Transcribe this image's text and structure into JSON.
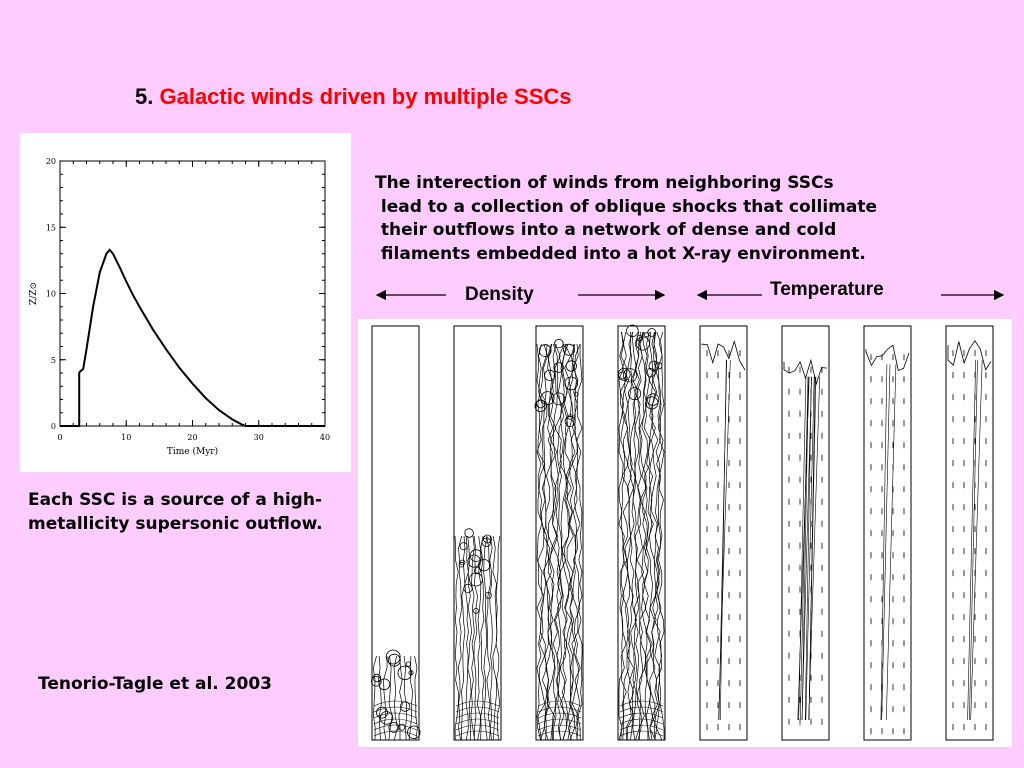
{
  "slide": {
    "number": "5.",
    "title": "Galactic winds driven by multiple SSCs",
    "title_color": "#ff0000",
    "background": "#ffccff"
  },
  "description_lines": [
    "The interection of winds from neighboring SSCs",
    " lead to a collection of oblique shocks that collimate",
    " their outflows into a network of dense and cold",
    " filaments embedded into a hot X-ray environment."
  ],
  "left_note": "Each SSC is a source of a high-metallicity supersonic outflow.",
  "citation": "Tenorio-Tagle et al. 2003",
  "labels": {
    "density": "Density",
    "temperature": "Temperature"
  },
  "chart_data": {
    "type": "line",
    "title": "",
    "xlabel": "Time (Myr)",
    "ylabel": "Z/Z⊙",
    "xlim": [
      0,
      40
    ],
    "ylim": [
      0,
      20
    ],
    "xticks": [
      "0",
      "10",
      "20",
      "30",
      "40"
    ],
    "yticks": [
      "0",
      "5",
      "10",
      "15",
      "20"
    ],
    "series": [
      {
        "x": [
          0,
          2.9,
          2.9,
          3.0,
          3.5,
          4.0,
          5.0,
          6.0,
          7.0,
          7.5,
          8.0,
          9.0,
          10.0,
          11.0,
          12.0,
          14.0,
          16.0,
          18.0,
          20.0,
          22.0,
          24.0,
          26.0,
          27.5,
          28.0,
          40.0
        ],
        "y": [
          0,
          0,
          4.0,
          4.1,
          4.3,
          5.8,
          9.0,
          11.6,
          13.0,
          13.3,
          13.0,
          12.0,
          10.9,
          9.9,
          9.0,
          7.3,
          5.8,
          4.4,
          3.2,
          2.1,
          1.2,
          0.5,
          0.1,
          0,
          0
        ]
      }
    ]
  },
  "simulation_panels": {
    "columns": 8,
    "density_columns": 4,
    "temperature_columns": 4
  }
}
